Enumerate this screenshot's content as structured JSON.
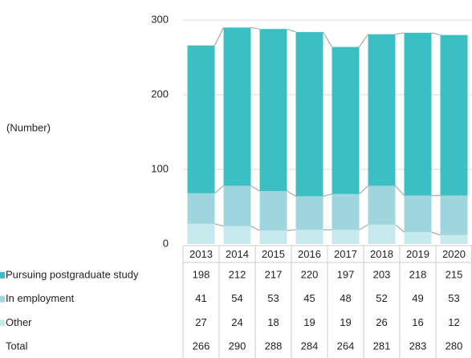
{
  "chart_data": {
    "type": "bar",
    "stacked": true,
    "y_axis_label": "(Number)",
    "categories": [
      "2013",
      "2014",
      "2015",
      "2016",
      "2017",
      "2018",
      "2019",
      "2020"
    ],
    "series": [
      {
        "name": "Pursuing postgraduate study",
        "color": "#3cbfc3",
        "values": [
          198,
          212,
          217,
          220,
          197,
          203,
          218,
          215
        ]
      },
      {
        "name": "In employment",
        "color": "#9fd6de",
        "values": [
          41,
          54,
          53,
          45,
          48,
          52,
          49,
          53
        ]
      },
      {
        "name": "Other",
        "color": "#c6e9ed",
        "values": [
          27,
          24,
          18,
          19,
          19,
          26,
          16,
          12
        ]
      }
    ],
    "total_label": "Total",
    "totals": [
      266,
      290,
      288,
      284,
      264,
      281,
      283,
      280
    ],
    "ylim": [
      0,
      300
    ],
    "yticks": [
      0,
      100,
      200,
      300
    ],
    "grid": true
  }
}
